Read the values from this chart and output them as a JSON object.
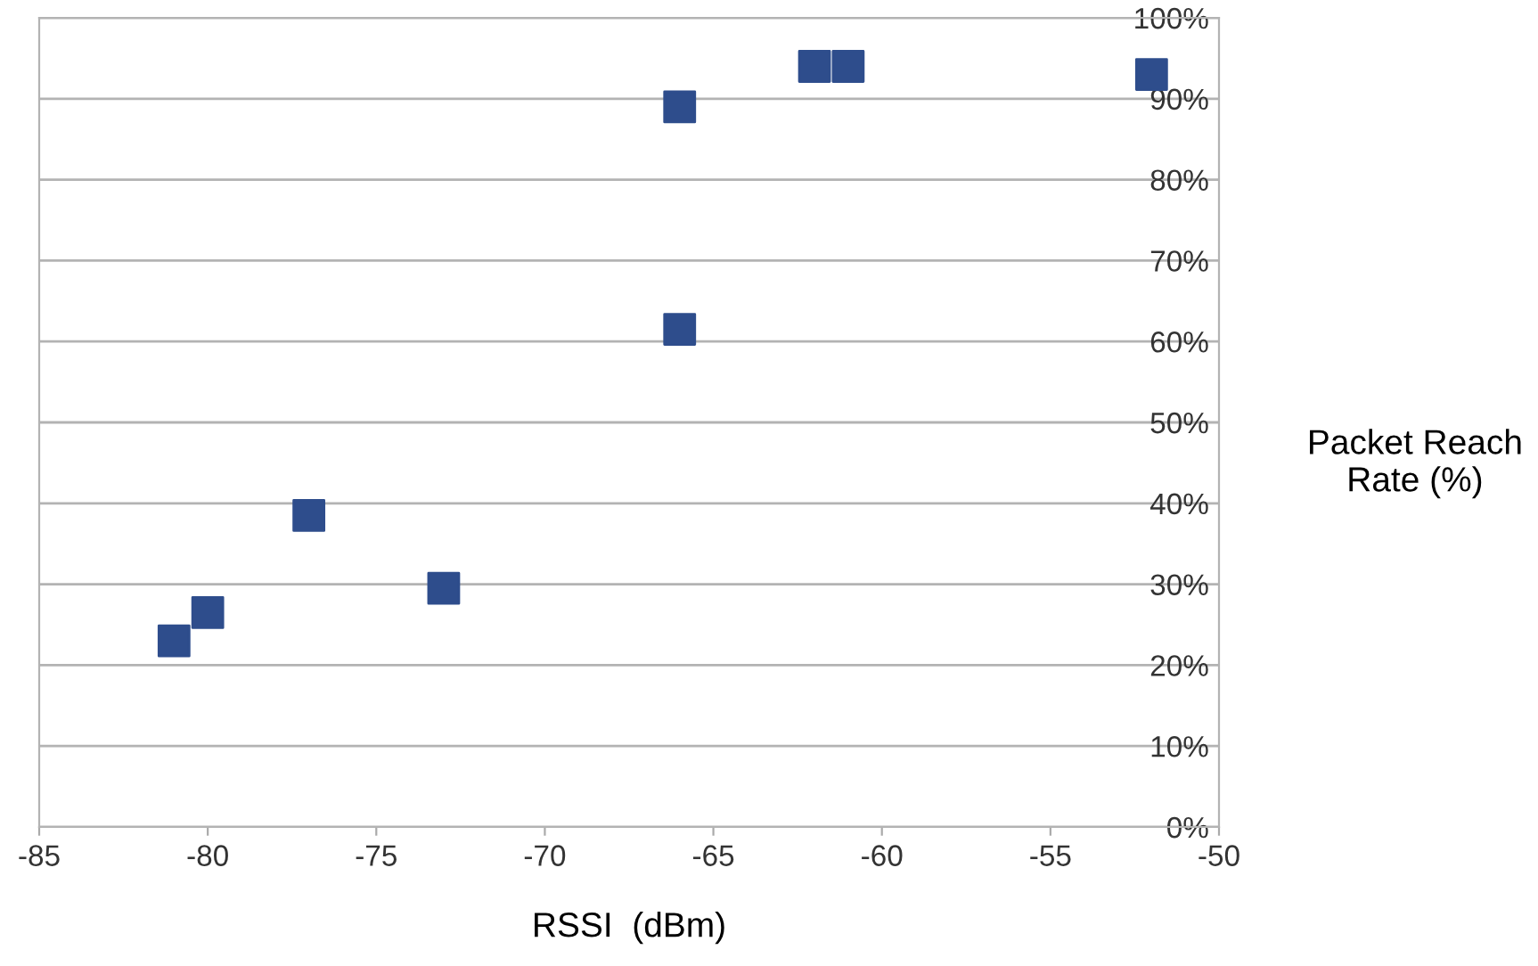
{
  "chart_data": {
    "type": "scatter",
    "xlabel": "RSSI  (dBm)",
    "ylabel": "Packet Reach\nRate (%)",
    "series": [
      {
        "color": "#2e4d8c",
        "x": [
          -81,
          -80,
          -77,
          -73,
          -66,
          -66,
          -62,
          -61,
          -52
        ],
        "values": [
          23,
          26.5,
          38.5,
          29.5,
          61.5,
          89,
          94,
          94,
          93
        ]
      }
    ],
    "marker": "square",
    "xlim": [
      -85,
      -50
    ],
    "ylim": [
      0,
      100
    ],
    "xticks": [
      -85,
      -80,
      -75,
      -70,
      -65,
      -60,
      -55,
      -50
    ],
    "yticks": [
      {
        "value": 0,
        "label": "0%"
      },
      {
        "value": 10,
        "label": "10%"
      },
      {
        "value": 20,
        "label": "20%"
      },
      {
        "value": 30,
        "label": "30%"
      },
      {
        "value": 40,
        "label": "40%"
      },
      {
        "value": 50,
        "label": "50%"
      },
      {
        "value": 60,
        "label": "60%"
      },
      {
        "value": 70,
        "label": "70%"
      },
      {
        "value": 80,
        "label": "80%"
      },
      {
        "value": 90,
        "label": "90%"
      },
      {
        "value": 100,
        "label": "100%"
      }
    ],
    "grid": "y"
  }
}
